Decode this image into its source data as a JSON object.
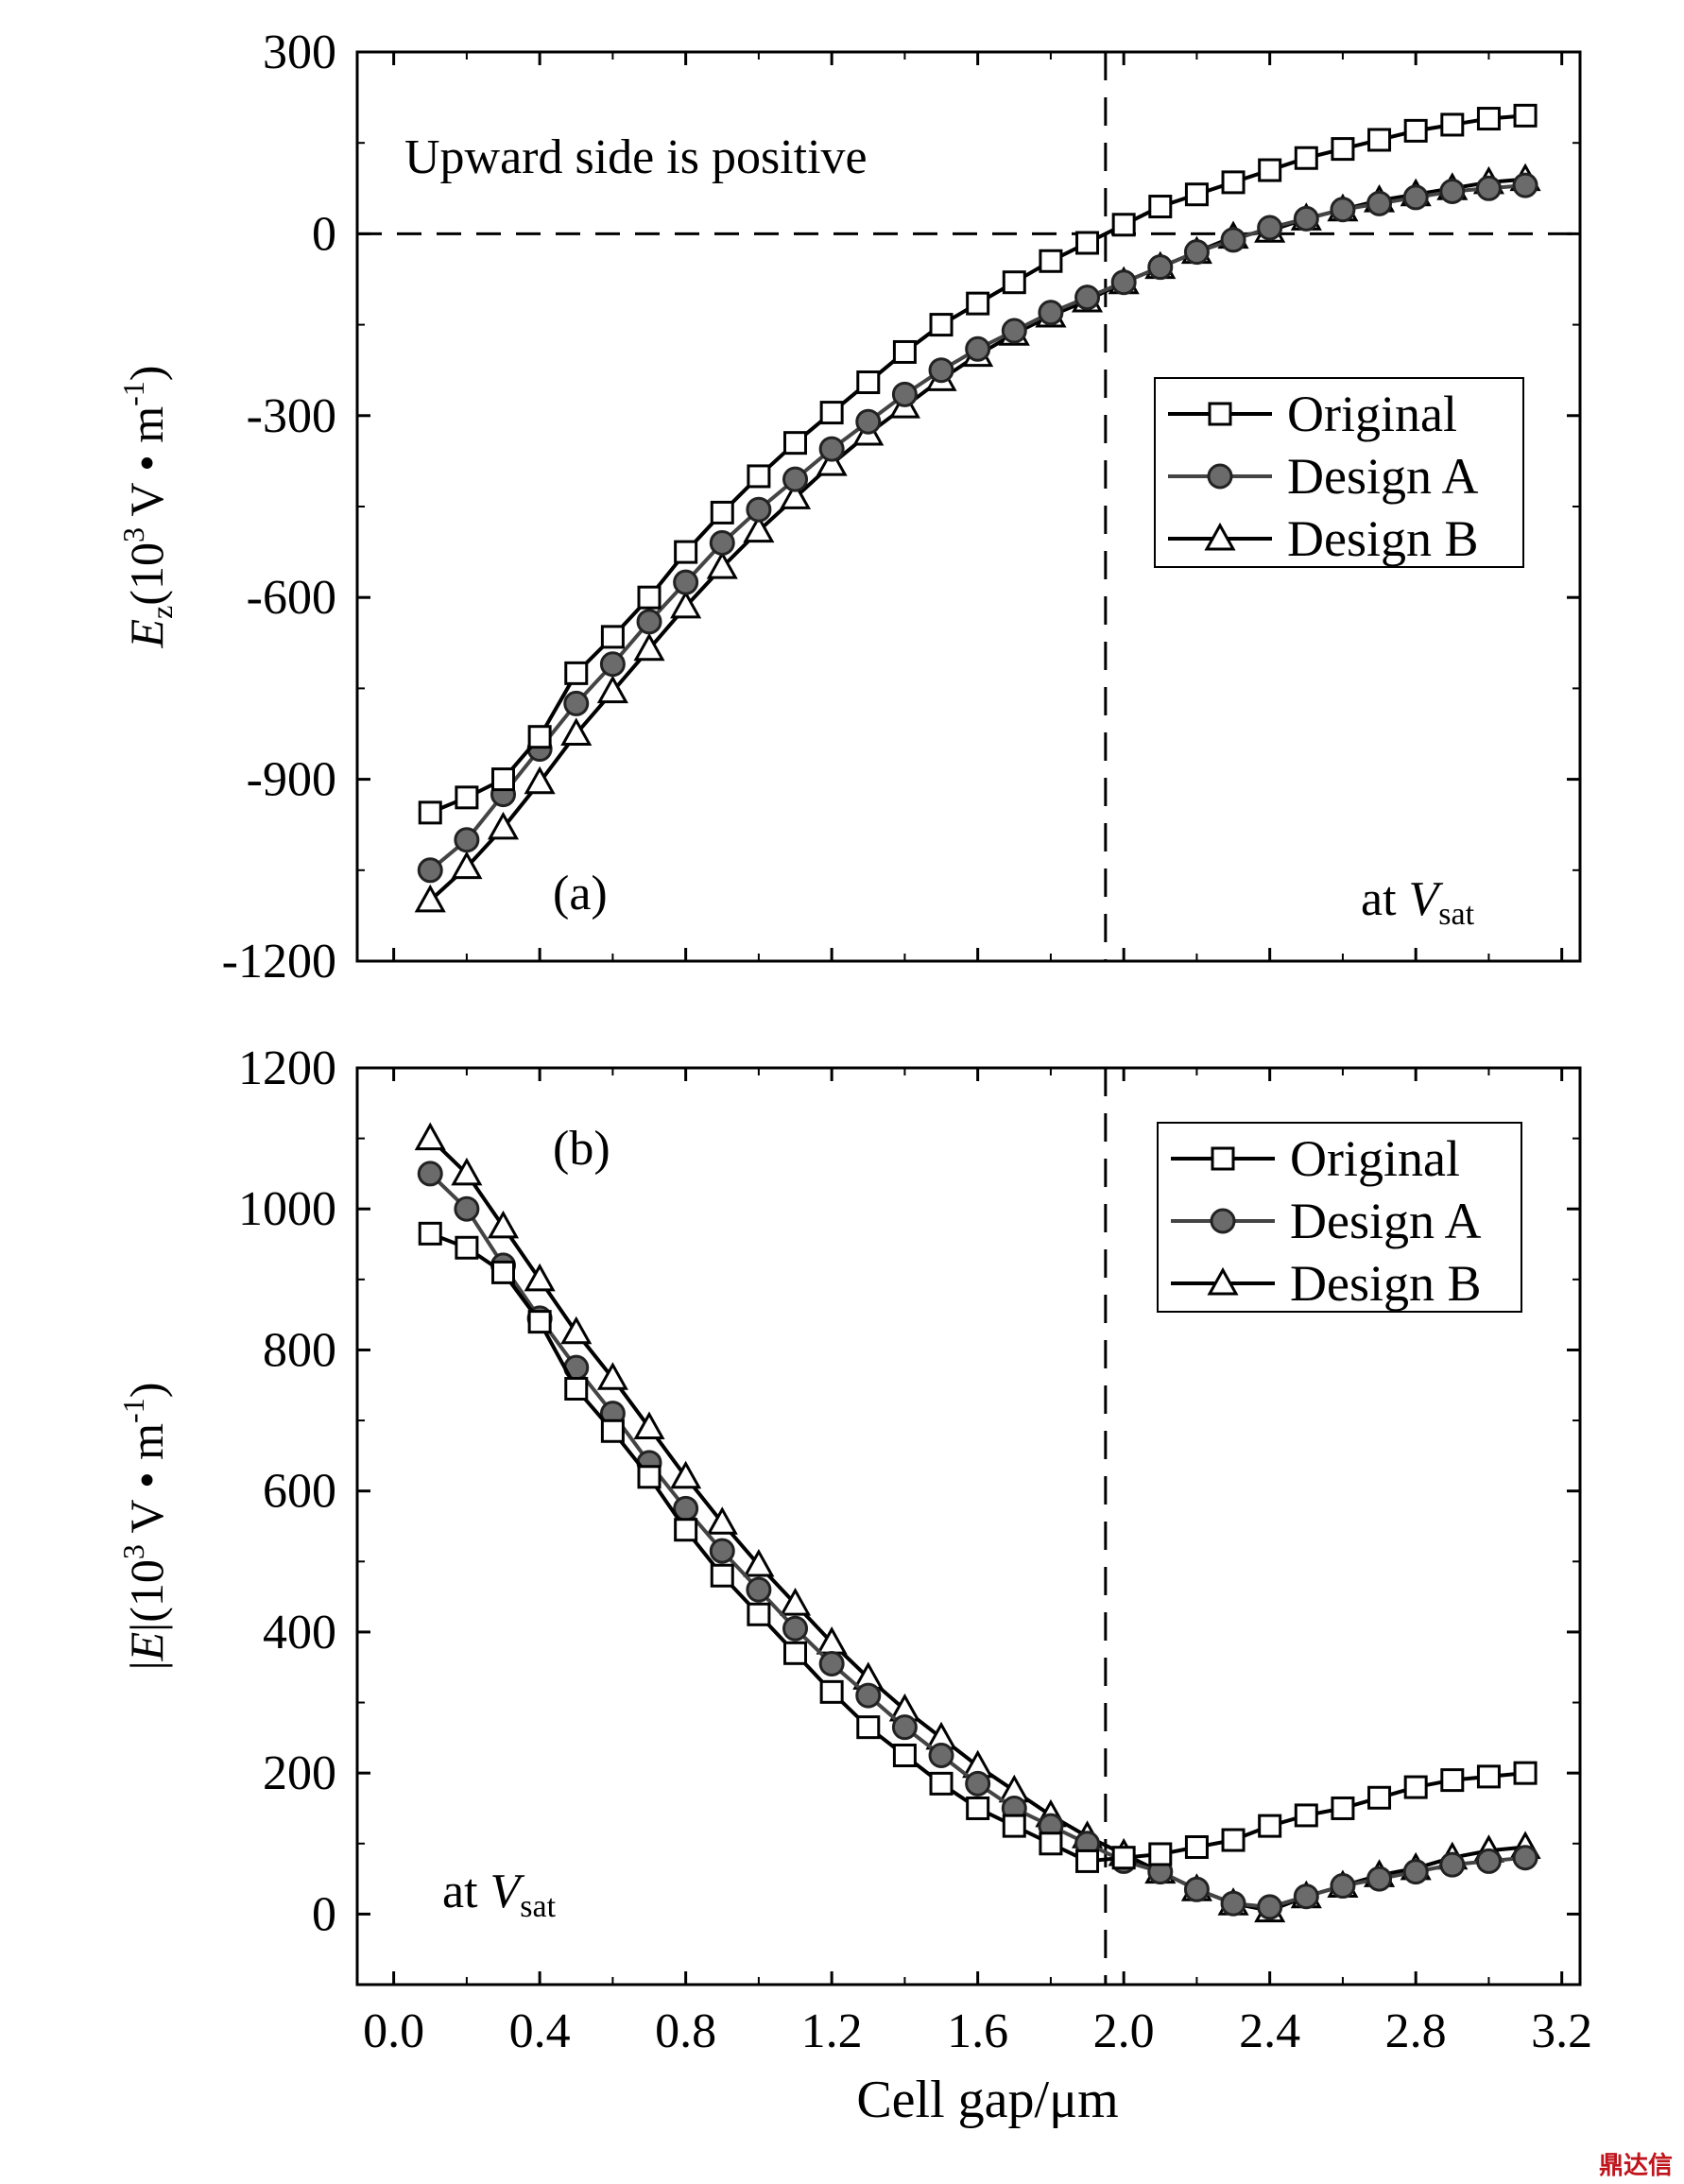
{
  "watermark": "鼎达信",
  "x_axis": {
    "label": "Cell gap/μm",
    "range": [
      -0.1,
      3.25
    ],
    "ticks": [
      0.0,
      0.4,
      0.8,
      1.2,
      1.6,
      2.0,
      2.4,
      2.8,
      3.2
    ],
    "tick_labels": [
      "0.0",
      "0.4",
      "0.8",
      "1.2",
      "1.6",
      "2.0",
      "2.4",
      "2.8",
      "3.2"
    ]
  },
  "chart_data": [
    {
      "type": "line",
      "panel_label": "(a)",
      "annotation_top": "Upward side is positive",
      "annotation_corner": {
        "prefix": "at ",
        "var": "V",
        "sub": "sat"
      },
      "ylabel": {
        "var": "E",
        "var_sub": "z",
        "rest_open": "(10",
        "sup": "3",
        "rest_mid": " V • m",
        "sup2": "-1",
        "rest_close": ")"
      },
      "ylim": [
        -1200,
        300
      ],
      "yticks": [
        300,
        0,
        -300,
        -600,
        -900,
        -1200
      ],
      "ytick_labels": [
        "300",
        "0",
        "-300",
        "-600",
        "-900",
        "-1200"
      ],
      "zero_line": true,
      "vline_x": 1.95,
      "legend_position": "right",
      "x": [
        0.1,
        0.2,
        0.3,
        0.4,
        0.5,
        0.6,
        0.7,
        0.8,
        0.9,
        1.0,
        1.1,
        1.2,
        1.3,
        1.4,
        1.5,
        1.6,
        1.7,
        1.8,
        1.9,
        2.0,
        2.1,
        2.2,
        2.3,
        2.4,
        2.5,
        2.6,
        2.7,
        2.8,
        2.9,
        3.0,
        3.1
      ],
      "series": [
        {
          "name": "Original",
          "marker": "square",
          "values": [
            -955,
            -930,
            -900,
            -830,
            -725,
            -665,
            -600,
            -525,
            -460,
            -400,
            -345,
            -295,
            -245,
            -195,
            -150,
            -115,
            -80,
            -45,
            -15,
            15,
            45,
            65,
            85,
            105,
            125,
            140,
            155,
            170,
            180,
            190,
            195
          ]
        },
        {
          "name": "Design A",
          "marker": "circle",
          "values": [
            -1050,
            -1000,
            -925,
            -850,
            -775,
            -710,
            -640,
            -575,
            -510,
            -455,
            -405,
            -355,
            -310,
            -265,
            -225,
            -190,
            -160,
            -130,
            -105,
            -80,
            -55,
            -30,
            -10,
            10,
            25,
            40,
            50,
            60,
            70,
            75,
            80
          ]
        },
        {
          "name": "Design B",
          "marker": "triangle",
          "values": [
            -1100,
            -1045,
            -980,
            -905,
            -825,
            -755,
            -685,
            -615,
            -550,
            -490,
            -435,
            -380,
            -330,
            -285,
            -240,
            -200,
            -165,
            -135,
            -110,
            -80,
            -55,
            -30,
            -5,
            5,
            25,
            40,
            55,
            65,
            75,
            85,
            90
          ]
        }
      ]
    },
    {
      "type": "line",
      "panel_label": "(b)",
      "annotation_corner": {
        "prefix": "at ",
        "var": "V",
        "sub": "sat"
      },
      "ylabel": {
        "var_pre": "|",
        "var": "E",
        "var_post": "|",
        "rest_open": "(10",
        "sup": "3",
        "rest_mid": " V • m",
        "sup2": "-1",
        "rest_close": ")"
      },
      "ylim": [
        -100,
        1200
      ],
      "yticks": [
        1200,
        1000,
        800,
        600,
        400,
        200,
        0
      ],
      "ytick_labels": [
        "1200",
        "1000",
        "800",
        "600",
        "400",
        "200",
        "0"
      ],
      "vline_x": 1.95,
      "legend_position": "top-right",
      "x": [
        0.1,
        0.2,
        0.3,
        0.4,
        0.5,
        0.6,
        0.7,
        0.8,
        0.9,
        1.0,
        1.1,
        1.2,
        1.3,
        1.4,
        1.5,
        1.6,
        1.7,
        1.8,
        1.9,
        2.0,
        2.1,
        2.2,
        2.3,
        2.4,
        2.5,
        2.6,
        2.7,
        2.8,
        2.9,
        3.0,
        3.1
      ],
      "series": [
        {
          "name": "Original",
          "marker": "square",
          "values": [
            965,
            945,
            910,
            840,
            745,
            685,
            620,
            545,
            480,
            425,
            370,
            315,
            265,
            225,
            185,
            150,
            125,
            100,
            75,
            80,
            85,
            95,
            105,
            125,
            140,
            150,
            165,
            180,
            190,
            195,
            200
          ]
        },
        {
          "name": "Design A",
          "marker": "circle",
          "values": [
            1050,
            1000,
            920,
            845,
            775,
            710,
            640,
            575,
            515,
            460,
            405,
            355,
            310,
            265,
            225,
            185,
            150,
            125,
            100,
            75,
            60,
            35,
            15,
            10,
            25,
            40,
            50,
            60,
            70,
            75,
            80
          ]
        },
        {
          "name": "Design B",
          "marker": "triangle",
          "values": [
            1100,
            1050,
            975,
            900,
            825,
            760,
            690,
            620,
            555,
            495,
            440,
            385,
            335,
            290,
            250,
            210,
            175,
            140,
            110,
            85,
            60,
            35,
            15,
            5,
            25,
            40,
            55,
            65,
            80,
            90,
            95
          ]
        }
      ]
    }
  ]
}
